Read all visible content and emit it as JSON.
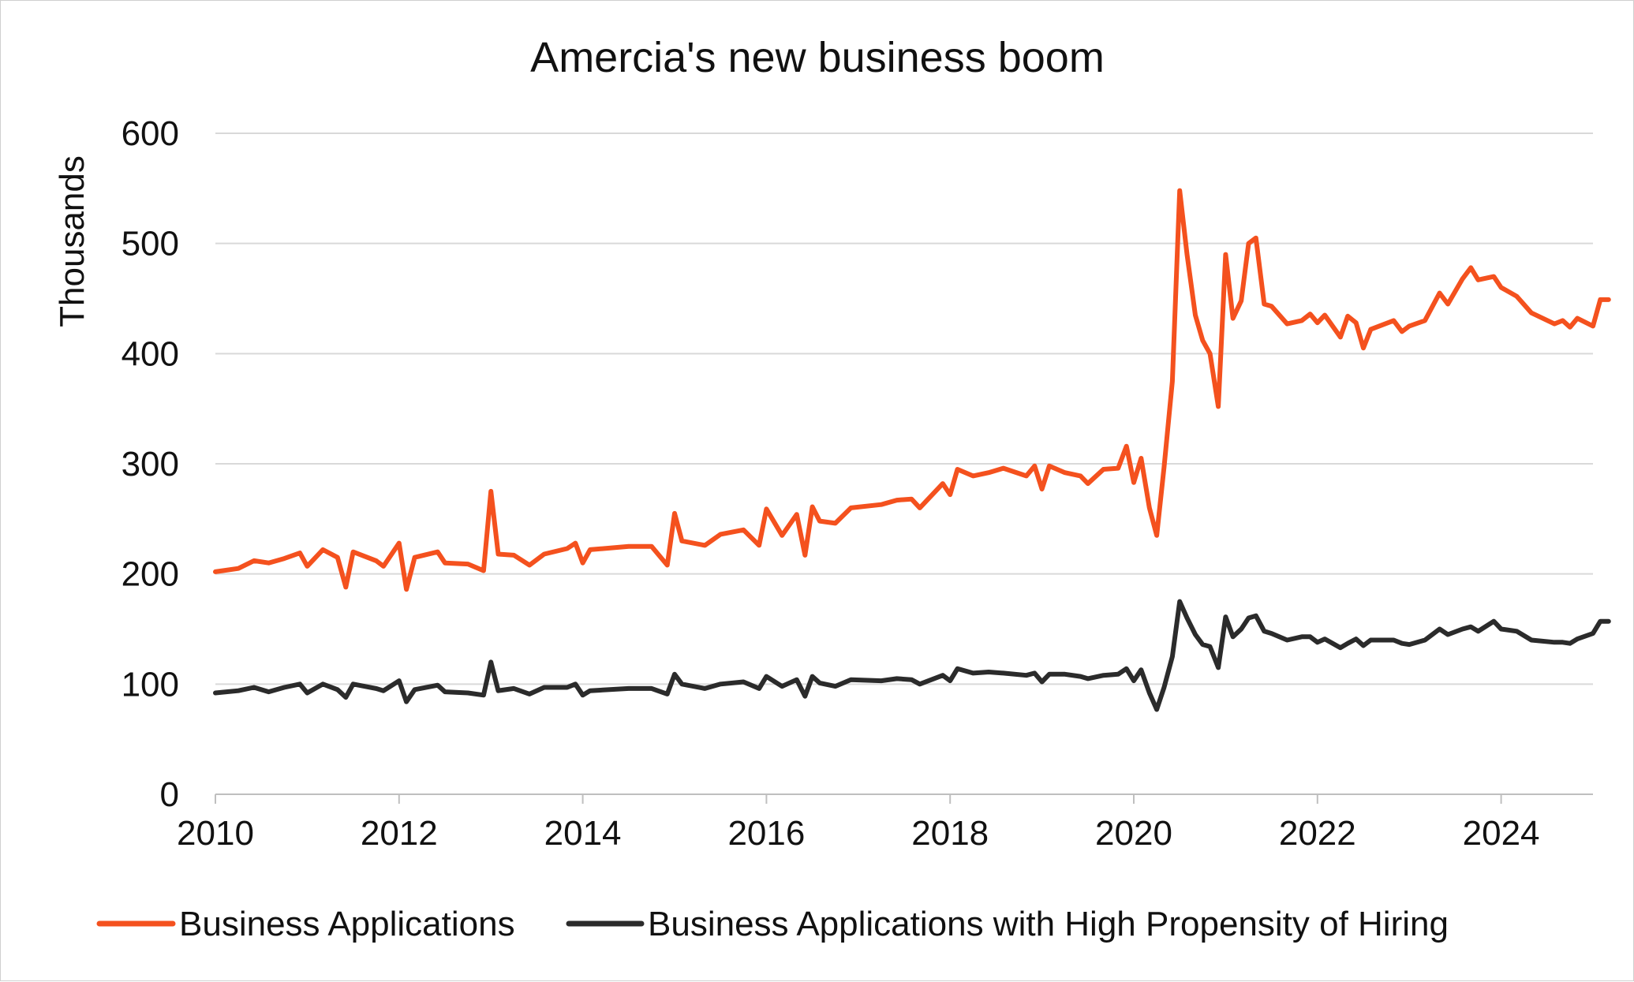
{
  "chart_data": {
    "type": "line",
    "title": "Amercia's new business boom",
    "ylabel": "Thousands",
    "xlabel": "",
    "ylim": [
      0,
      600
    ],
    "yticks": [
      0,
      100,
      200,
      300,
      400,
      500,
      600
    ],
    "xlim": [
      2010,
      2025
    ],
    "xticks": [
      2010,
      2012,
      2014,
      2016,
      2018,
      2020,
      2022,
      2024
    ],
    "grid": "horizontal",
    "legend": "bottom",
    "series": [
      {
        "name": "Business Applications",
        "color": "#F4511E",
        "points": [
          [
            2010.0,
            202
          ],
          [
            2010.25,
            205
          ],
          [
            2010.42,
            212
          ],
          [
            2010.58,
            210
          ],
          [
            2010.75,
            214
          ],
          [
            2010.92,
            219
          ],
          [
            2011.0,
            207
          ],
          [
            2011.17,
            222
          ],
          [
            2011.33,
            215
          ],
          [
            2011.42,
            188
          ],
          [
            2011.5,
            220
          ],
          [
            2011.75,
            212
          ],
          [
            2011.83,
            207
          ],
          [
            2012.0,
            228
          ],
          [
            2012.08,
            186
          ],
          [
            2012.17,
            215
          ],
          [
            2012.42,
            220
          ],
          [
            2012.5,
            210
          ],
          [
            2012.75,
            209
          ],
          [
            2012.92,
            203
          ],
          [
            2013.0,
            275
          ],
          [
            2013.08,
            218
          ],
          [
            2013.25,
            217
          ],
          [
            2013.42,
            208
          ],
          [
            2013.58,
            218
          ],
          [
            2013.83,
            223
          ],
          [
            2013.92,
            228
          ],
          [
            2014.0,
            210
          ],
          [
            2014.08,
            222
          ],
          [
            2014.5,
            225
          ],
          [
            2014.75,
            225
          ],
          [
            2014.92,
            208
          ],
          [
            2015.0,
            255
          ],
          [
            2015.08,
            230
          ],
          [
            2015.33,
            226
          ],
          [
            2015.5,
            236
          ],
          [
            2015.75,
            240
          ],
          [
            2015.92,
            226
          ],
          [
            2016.0,
            259
          ],
          [
            2016.17,
            235
          ],
          [
            2016.33,
            254
          ],
          [
            2016.42,
            217
          ],
          [
            2016.5,
            261
          ],
          [
            2016.58,
            248
          ],
          [
            2016.75,
            246
          ],
          [
            2016.92,
            260
          ],
          [
            2017.25,
            263
          ],
          [
            2017.42,
            267
          ],
          [
            2017.58,
            268
          ],
          [
            2017.67,
            260
          ],
          [
            2017.92,
            282
          ],
          [
            2018.0,
            272
          ],
          [
            2018.08,
            295
          ],
          [
            2018.25,
            289
          ],
          [
            2018.42,
            292
          ],
          [
            2018.58,
            296
          ],
          [
            2018.83,
            289
          ],
          [
            2018.92,
            298
          ],
          [
            2019.0,
            277
          ],
          [
            2019.08,
            298
          ],
          [
            2019.25,
            292
          ],
          [
            2019.42,
            289
          ],
          [
            2019.5,
            282
          ],
          [
            2019.67,
            295
          ],
          [
            2019.83,
            296
          ],
          [
            2019.92,
            316
          ],
          [
            2020.0,
            283
          ],
          [
            2020.08,
            305
          ],
          [
            2020.17,
            260
          ],
          [
            2020.25,
            235
          ],
          [
            2020.33,
            297
          ],
          [
            2020.42,
            375
          ],
          [
            2020.5,
            548
          ],
          [
            2020.58,
            490
          ],
          [
            2020.67,
            435
          ],
          [
            2020.75,
            412
          ],
          [
            2020.83,
            400
          ],
          [
            2020.92,
            352
          ],
          [
            2021.0,
            490
          ],
          [
            2021.08,
            432
          ],
          [
            2021.17,
            448
          ],
          [
            2021.25,
            500
          ],
          [
            2021.33,
            505
          ],
          [
            2021.42,
            445
          ],
          [
            2021.5,
            443
          ],
          [
            2021.67,
            427
          ],
          [
            2021.83,
            430
          ],
          [
            2021.92,
            436
          ],
          [
            2022.0,
            428
          ],
          [
            2022.08,
            435
          ],
          [
            2022.25,
            415
          ],
          [
            2022.33,
            434
          ],
          [
            2022.42,
            428
          ],
          [
            2022.5,
            405
          ],
          [
            2022.58,
            422
          ],
          [
            2022.83,
            430
          ],
          [
            2022.92,
            420
          ],
          [
            2023.0,
            425
          ],
          [
            2023.17,
            430
          ],
          [
            2023.33,
            455
          ],
          [
            2023.42,
            445
          ],
          [
            2023.58,
            468
          ],
          [
            2023.67,
            478
          ],
          [
            2023.75,
            467
          ],
          [
            2023.92,
            470
          ],
          [
            2024.0,
            460
          ],
          [
            2024.17,
            452
          ],
          [
            2024.33,
            437
          ],
          [
            2024.58,
            427
          ],
          [
            2024.67,
            430
          ],
          [
            2024.75,
            424
          ],
          [
            2024.83,
            432
          ],
          [
            2025.0,
            425
          ],
          [
            2025.08,
            449
          ],
          [
            2025.17,
            449
          ]
        ]
      },
      {
        "name": "Business Applications with High Propensity of Hiring",
        "color": "#2B2B2B",
        "points": [
          [
            2010.0,
            92
          ],
          [
            2010.25,
            94
          ],
          [
            2010.42,
            97
          ],
          [
            2010.58,
            93
          ],
          [
            2010.75,
            97
          ],
          [
            2010.92,
            100
          ],
          [
            2011.0,
            92
          ],
          [
            2011.17,
            100
          ],
          [
            2011.33,
            95
          ],
          [
            2011.42,
            88
          ],
          [
            2011.5,
            100
          ],
          [
            2011.75,
            96
          ],
          [
            2011.83,
            94
          ],
          [
            2012.0,
            103
          ],
          [
            2012.08,
            84
          ],
          [
            2012.17,
            95
          ],
          [
            2012.42,
            99
          ],
          [
            2012.5,
            93
          ],
          [
            2012.75,
            92
          ],
          [
            2012.92,
            90
          ],
          [
            2013.0,
            120
          ],
          [
            2013.08,
            94
          ],
          [
            2013.25,
            96
          ],
          [
            2013.42,
            91
          ],
          [
            2013.58,
            97
          ],
          [
            2013.83,
            97
          ],
          [
            2013.92,
            100
          ],
          [
            2014.0,
            90
          ],
          [
            2014.08,
            94
          ],
          [
            2014.5,
            96
          ],
          [
            2014.75,
            96
          ],
          [
            2014.92,
            91
          ],
          [
            2015.0,
            109
          ],
          [
            2015.08,
            100
          ],
          [
            2015.33,
            96
          ],
          [
            2015.5,
            100
          ],
          [
            2015.75,
            102
          ],
          [
            2015.92,
            96
          ],
          [
            2016.0,
            107
          ],
          [
            2016.17,
            98
          ],
          [
            2016.33,
            104
          ],
          [
            2016.42,
            89
          ],
          [
            2016.5,
            107
          ],
          [
            2016.58,
            101
          ],
          [
            2016.75,
            98
          ],
          [
            2016.92,
            104
          ],
          [
            2017.25,
            103
          ],
          [
            2017.42,
            105
          ],
          [
            2017.58,
            104
          ],
          [
            2017.67,
            100
          ],
          [
            2017.92,
            108
          ],
          [
            2018.0,
            103
          ],
          [
            2018.08,
            114
          ],
          [
            2018.25,
            110
          ],
          [
            2018.42,
            111
          ],
          [
            2018.58,
            110
          ],
          [
            2018.83,
            108
          ],
          [
            2018.92,
            110
          ],
          [
            2019.0,
            102
          ],
          [
            2019.08,
            109
          ],
          [
            2019.25,
            109
          ],
          [
            2019.42,
            107
          ],
          [
            2019.5,
            105
          ],
          [
            2019.67,
            108
          ],
          [
            2019.83,
            109
          ],
          [
            2019.92,
            114
          ],
          [
            2020.0,
            103
          ],
          [
            2020.08,
            113
          ],
          [
            2020.17,
            92
          ],
          [
            2020.25,
            77
          ],
          [
            2020.33,
            97
          ],
          [
            2020.42,
            125
          ],
          [
            2020.5,
            175
          ],
          [
            2020.58,
            160
          ],
          [
            2020.67,
            145
          ],
          [
            2020.75,
            136
          ],
          [
            2020.83,
            134
          ],
          [
            2020.92,
            115
          ],
          [
            2021.0,
            161
          ],
          [
            2021.08,
            143
          ],
          [
            2021.17,
            150
          ],
          [
            2021.25,
            160
          ],
          [
            2021.33,
            162
          ],
          [
            2021.42,
            148
          ],
          [
            2021.5,
            146
          ],
          [
            2021.67,
            140
          ],
          [
            2021.83,
            143
          ],
          [
            2021.92,
            143
          ],
          [
            2022.0,
            138
          ],
          [
            2022.08,
            141
          ],
          [
            2022.25,
            133
          ],
          [
            2022.33,
            137
          ],
          [
            2022.42,
            141
          ],
          [
            2022.5,
            135
          ],
          [
            2022.58,
            140
          ],
          [
            2022.83,
            140
          ],
          [
            2022.92,
            137
          ],
          [
            2023.0,
            136
          ],
          [
            2023.17,
            140
          ],
          [
            2023.33,
            150
          ],
          [
            2023.42,
            145
          ],
          [
            2023.58,
            150
          ],
          [
            2023.67,
            152
          ],
          [
            2023.75,
            148
          ],
          [
            2023.92,
            157
          ],
          [
            2024.0,
            150
          ],
          [
            2024.17,
            148
          ],
          [
            2024.33,
            140
          ],
          [
            2024.58,
            138
          ],
          [
            2024.67,
            138
          ],
          [
            2024.75,
            137
          ],
          [
            2024.83,
            141
          ],
          [
            2025.0,
            146
          ],
          [
            2025.08,
            157
          ],
          [
            2025.17,
            157
          ]
        ]
      }
    ]
  }
}
